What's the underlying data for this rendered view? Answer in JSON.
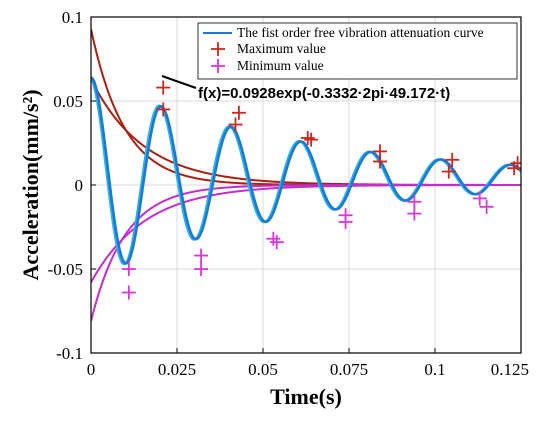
{
  "chart_data": {
    "type": "line",
    "xlabel": "Time(s)",
    "ylabel": "Acceleration(mm/s²)",
    "xlim": [
      0,
      0.125
    ],
    "ylim": [
      -0.1,
      0.1
    ],
    "x_ticks": [
      0,
      0.025,
      0.05,
      0.075,
      0.1,
      0.125
    ],
    "x_tick_labels": [
      "0",
      "0.025",
      "0.05",
      "0.075",
      "0.1",
      "0.125"
    ],
    "y_ticks": [
      -0.1,
      -0.05,
      0,
      0.05,
      0.1
    ],
    "y_tick_labels": [
      "-0.1",
      "-0.05",
      "0",
      "0.05",
      "0.1"
    ],
    "grid": true,
    "legend_position": "top-right",
    "annotation": "f(x)=0.0928exp(-0.3332·2pi·49.172·t)",
    "series": [
      {
        "name": "The fist order free vibration attenuation curve",
        "color": "#1f77d4",
        "frequency_hz": 49.172,
        "amplitude": 0.06,
        "damping_rate": 16.5,
        "offset": 0.004
      },
      {
        "name": "Maximum value",
        "color": "#c8281e",
        "points": [
          {
            "x": 0.021,
            "y": 0.058
          },
          {
            "x": 0.021,
            "y": 0.045
          },
          {
            "x": 0.043,
            "y": 0.043
          },
          {
            "x": 0.042,
            "y": 0.036
          },
          {
            "x": 0.063,
            "y": 0.028
          },
          {
            "x": 0.064,
            "y": 0.027
          },
          {
            "x": 0.084,
            "y": 0.02
          },
          {
            "x": 0.084,
            "y": 0.014
          },
          {
            "x": 0.105,
            "y": 0.015
          },
          {
            "x": 0.104,
            "y": 0.008
          },
          {
            "x": 0.124,
            "y": 0.013
          },
          {
            "x": 0.123,
            "y": 0.01
          }
        ]
      },
      {
        "name": "Minimum value",
        "color": "#d838d8",
        "points": [
          {
            "x": 0.011,
            "y": -0.05
          },
          {
            "x": 0.011,
            "y": -0.064
          },
          {
            "x": 0.032,
            "y": -0.042
          },
          {
            "x": 0.032,
            "y": -0.05
          },
          {
            "x": 0.053,
            "y": -0.032
          },
          {
            "x": 0.054,
            "y": -0.034
          },
          {
            "x": 0.074,
            "y": -0.022
          },
          {
            "x": 0.074,
            "y": -0.018
          },
          {
            "x": 0.094,
            "y": -0.017
          },
          {
            "x": 0.094,
            "y": -0.01
          },
          {
            "x": 0.115,
            "y": -0.013
          },
          {
            "x": 0.113,
            "y": -0.008
          }
        ]
      }
    ],
    "envelopes": [
      {
        "color": "#a82010",
        "y0": 0.0928,
        "k": 102.95
      },
      {
        "color": "#a82010",
        "y0": 0.063,
        "k": 65.0
      },
      {
        "color": "#c030c8",
        "y0": -0.081,
        "k": 101.0
      },
      {
        "color": "#c030c8",
        "y0": -0.058,
        "k": 64.0
      }
    ],
    "cyan_color": "#29b6e6"
  }
}
